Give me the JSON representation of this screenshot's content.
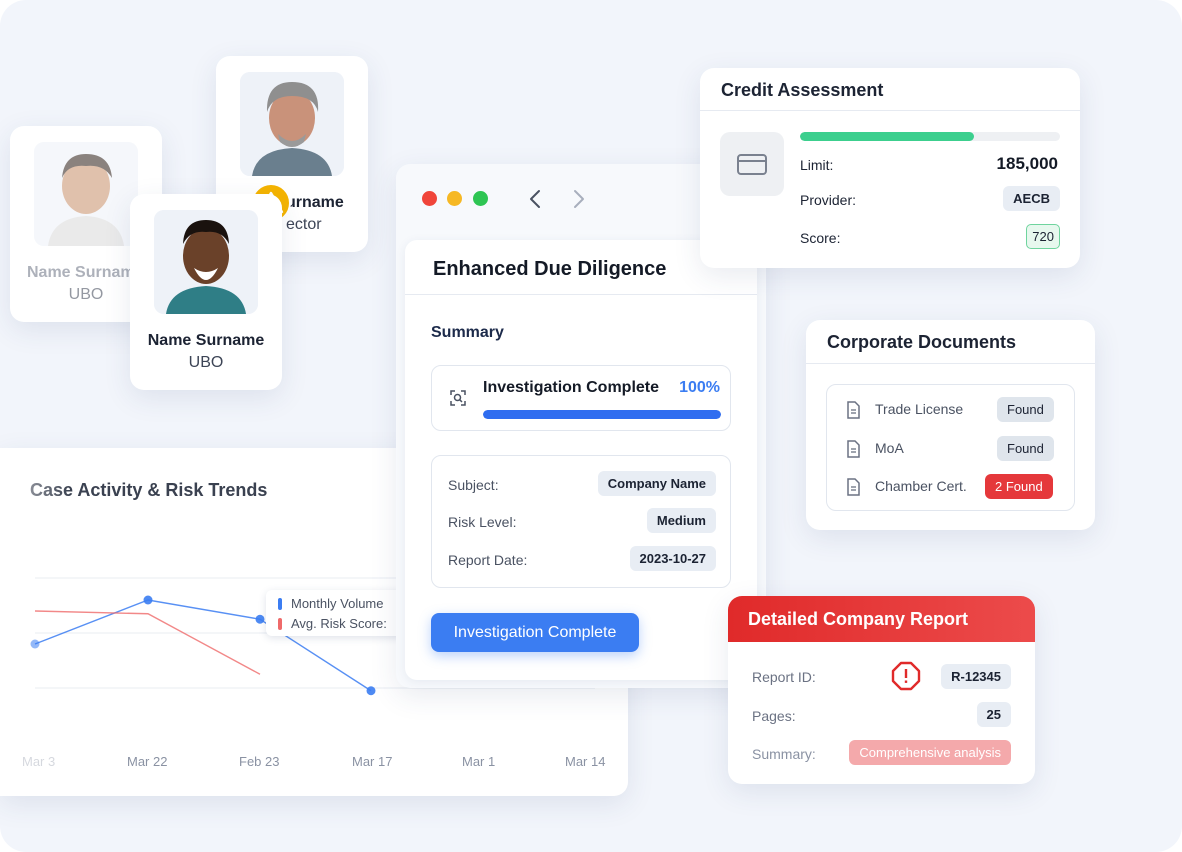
{
  "people": {
    "ubo_back": {
      "name": "Name Surname",
      "role": "UBO"
    },
    "director": {
      "name": "Name Surname",
      "role": "Director",
      "name_visible": "urname",
      "role_visible": "ector"
    },
    "ubo_front": {
      "name": "Name Surname",
      "role": "UBO"
    }
  },
  "credit": {
    "title": "Credit Assessment",
    "progress": 0.67,
    "limit_label": "Limit:",
    "limit_value": "185,000",
    "provider_label": "Provider:",
    "provider_value": "AECB",
    "score_label": "Score:",
    "score_value": "720"
  },
  "edd": {
    "title": "Enhanced Due Diligence",
    "summary_label": "Summary",
    "investigation_title": "Investigation Complete",
    "investigation_percent": "100%",
    "investigation_progress": 1.0,
    "subject_label": "Subject:",
    "subject_value": "Company Name",
    "risk_label": "Risk Level:",
    "risk_value": "Medium",
    "date_label": "Report Date:",
    "date_value": "2023-10-27",
    "button_label": "Investigation Complete"
  },
  "documents": {
    "title": "Corporate Documents",
    "items": [
      {
        "label": "Trade License",
        "status": "Found"
      },
      {
        "label": "MoA",
        "status": "Found"
      },
      {
        "label": "Chamber Cert.",
        "status": "2 Found"
      }
    ]
  },
  "report": {
    "title": "Detailed Company Report",
    "id_label": "Report ID:",
    "id_value": "R-12345",
    "pages_label": "Pages:",
    "pages_value": "25",
    "summary_label": "Summary:",
    "summary_value": "Comprehensive analysis"
  },
  "colors": {
    "accent": "#3b7df2",
    "green": "#3ccf8e",
    "red": "#e5383b",
    "warning": "#f5b400"
  },
  "chart_data": {
    "type": "line",
    "title": "Case Activity & Risk Trends",
    "categories": [
      "Mar 3",
      "Mar 22",
      "Feb 23",
      "Mar 17",
      "Mar 1",
      "Mar 14"
    ],
    "series": [
      {
        "name": "Monthly Volume",
        "values": [
          3.6,
          5.2,
          4.5,
          1.9,
          null,
          null
        ],
        "color": "#3b7df2"
      },
      {
        "name": "Avg. Risk Score",
        "values": [
          4.8,
          4.7,
          2.5,
          null,
          null,
          null
        ],
        "color": "#ef6a6a"
      }
    ],
    "ylim": [
      0,
      8
    ],
    "grid": true,
    "legend_labels": [
      "Monthly Volume",
      "Avg. Risk Score:"
    ]
  }
}
